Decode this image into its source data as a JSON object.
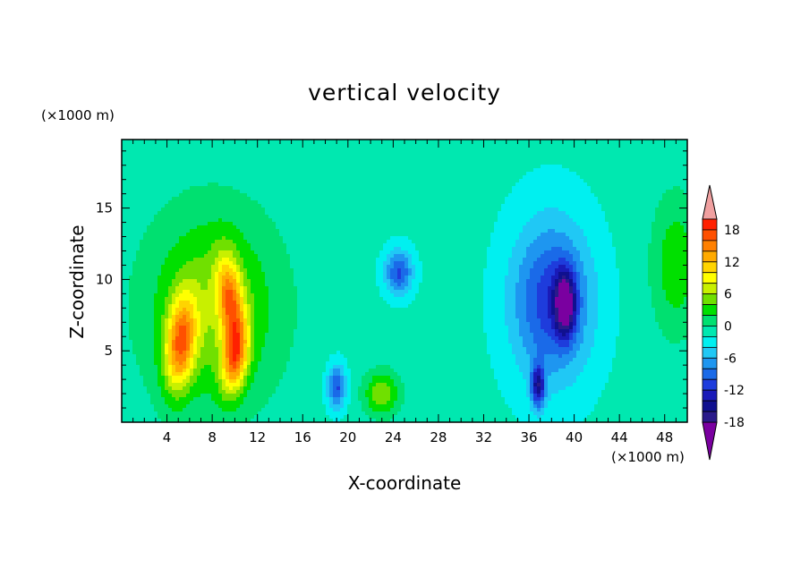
{
  "chart_data": {
    "type": "heatmap",
    "title": "vertical velocity",
    "xlabel": "X-coordinate",
    "ylabel": "Z-coordinate",
    "x_units": "(×1000 m)",
    "y_units": "(×1000 m)",
    "xlim": [
      0,
      50
    ],
    "ylim": [
      0,
      19.8
    ],
    "x_ticks": [
      4,
      8,
      12,
      16,
      20,
      24,
      28,
      32,
      36,
      40,
      44,
      48
    ],
    "y_ticks": [
      5,
      10,
      15
    ],
    "colorbar": {
      "levels": [
        -20,
        -18,
        -16,
        -14,
        -12,
        -10,
        -8,
        -6,
        -4,
        -2,
        0,
        2,
        4,
        6,
        8,
        10,
        12,
        14,
        16,
        18,
        20
      ],
      "labels": [
        18,
        12,
        6,
        0,
        -6,
        -12,
        -18
      ],
      "colors": [
        "#7a00a0",
        "#2a1a8a",
        "#10108f",
        "#1a1ab8",
        "#1e3cdc",
        "#1a6ae8",
        "#1e96f0",
        "#20c8f5",
        "#00f0f0",
        "#00e8b0",
        "#00e070",
        "#00e000",
        "#70e000",
        "#c8f000",
        "#ffff00",
        "#ffd400",
        "#ffaa00",
        "#ff8000",
        "#ff5000",
        "#ff2000",
        "#f0a0a0"
      ],
      "extend": "both"
    },
    "features": [
      {
        "x": 5.2,
        "z": 5.5,
        "value": 14,
        "sx": 1.3,
        "sz": 3.2,
        "tilt": -0.25
      },
      {
        "x": 9.6,
        "z": 8.5,
        "value": 12,
        "sx": 1.1,
        "sz": 3.0,
        "tilt": 0.3
      },
      {
        "x": 10.0,
        "z": 4.5,
        "value": 13,
        "sx": 1.1,
        "sz": 2.5,
        "tilt": -0.3
      },
      {
        "x": 8.0,
        "z": 8.0,
        "value": 7,
        "sx": 6.0,
        "sz": 7.0,
        "tilt": 0
      },
      {
        "x": 23.0,
        "z": 2.0,
        "value": 7,
        "sx": 1.6,
        "sz": 1.6,
        "tilt": 0
      },
      {
        "x": 19.0,
        "z": 2.5,
        "value": -9,
        "sx": 0.8,
        "sz": 1.5,
        "tilt": 0
      },
      {
        "x": 24.5,
        "z": 10.5,
        "value": -9,
        "sx": 1.2,
        "sz": 1.5,
        "tilt": 0
      },
      {
        "x": 38.0,
        "z": 8.5,
        "value": -10,
        "sx": 3.5,
        "sz": 5.5,
        "tilt": 0
      },
      {
        "x": 39.2,
        "z": 8.3,
        "value": -14,
        "sx": 0.9,
        "sz": 2.2,
        "tilt": 0
      },
      {
        "x": 36.8,
        "z": 2.5,
        "value": -12,
        "sx": 0.6,
        "sz": 1.5,
        "tilt": 0
      },
      {
        "x": 49.0,
        "z": 11.0,
        "value": 5,
        "sx": 2.2,
        "sz": 5.0,
        "tilt": 0
      }
    ]
  }
}
